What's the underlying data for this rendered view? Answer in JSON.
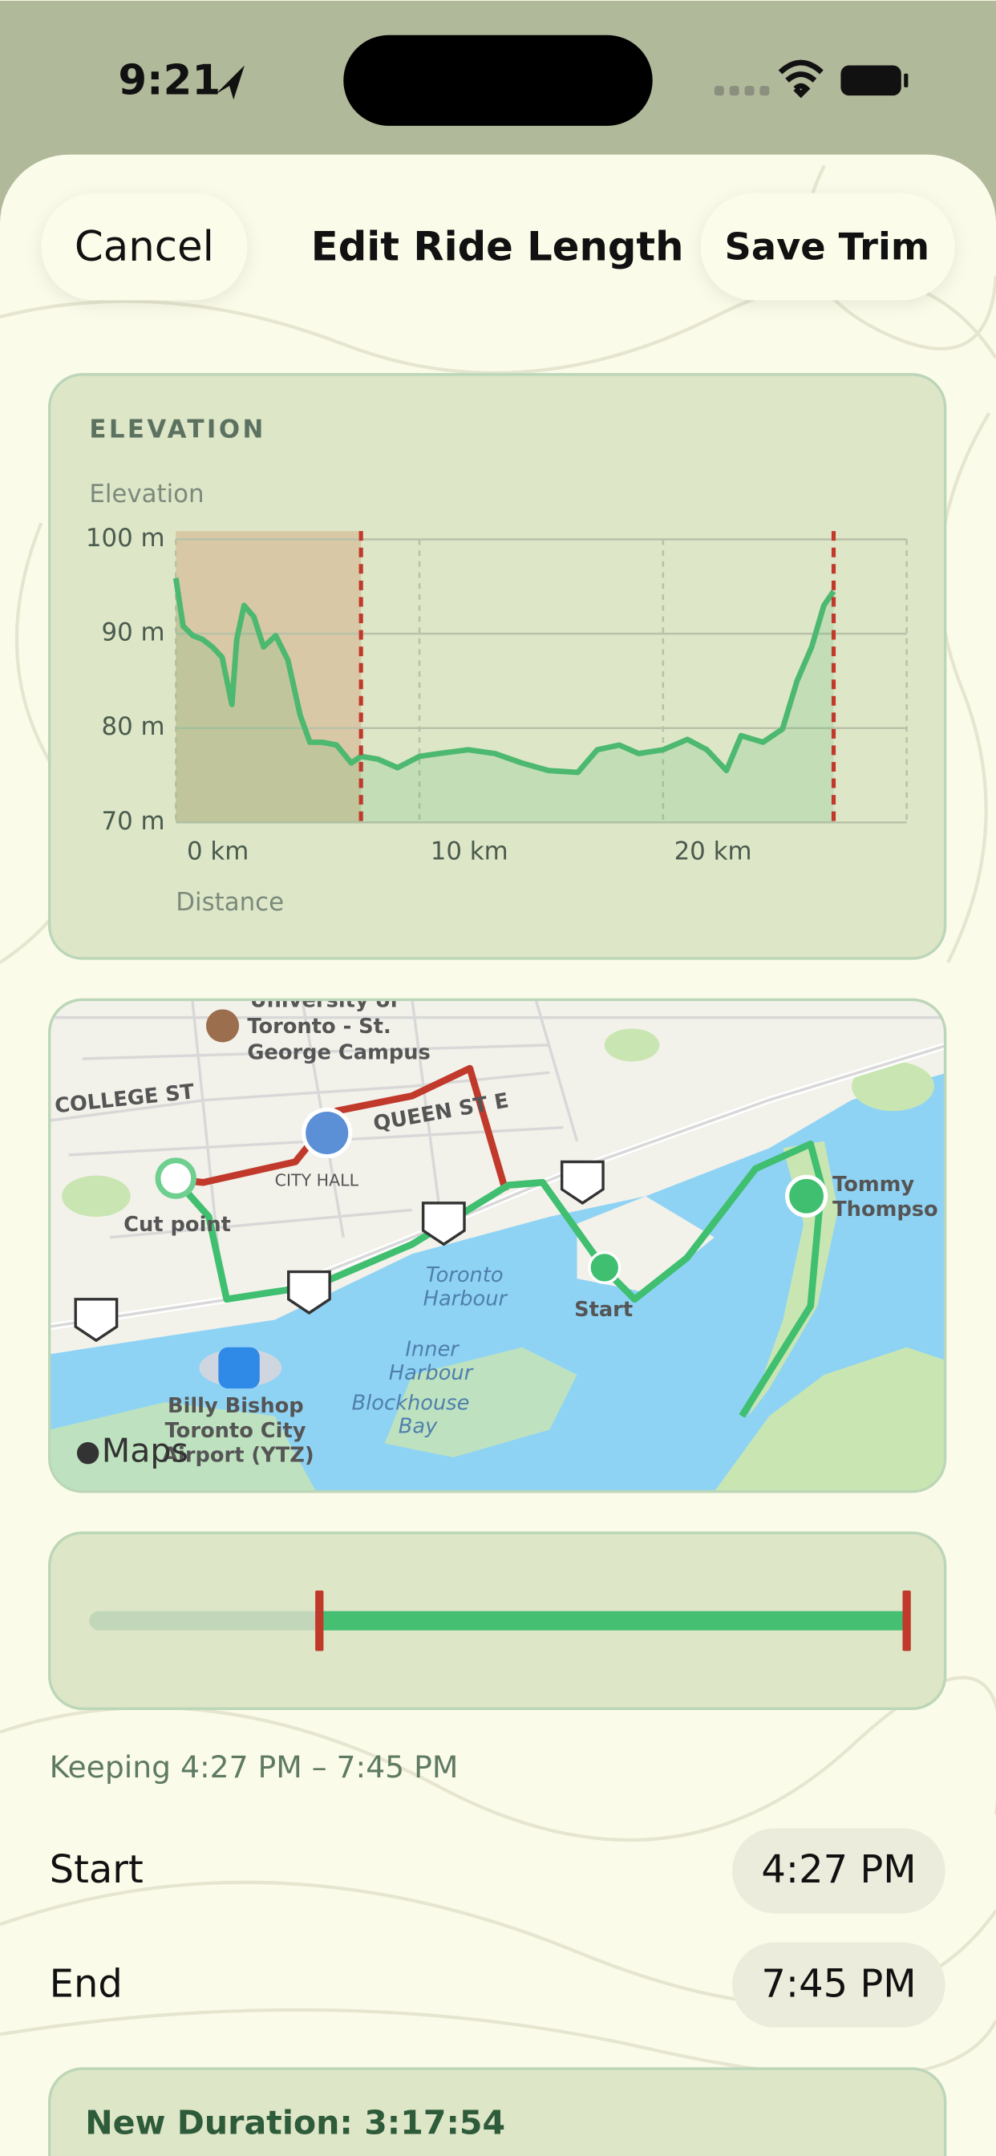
{
  "status_bar": {
    "time": "9:21"
  },
  "header": {
    "cancel": "Cancel",
    "title": "Edit Ride Length",
    "save": "Save Trim"
  },
  "chart_data": {
    "type": "line",
    "section_title": "ELEVATION",
    "y_label": "Elevation",
    "x_label": "Distance",
    "x": [
      0,
      0.3,
      0.7,
      1.1,
      1.5,
      1.9,
      2.3,
      2.5,
      2.8,
      3.2,
      3.6,
      4.1,
      4.6,
      5.1,
      5.5,
      6.0,
      6.6,
      7.2,
      7.6,
      8.3,
      9.1,
      10,
      10.8,
      12,
      13.1,
      14.2,
      15.3,
      16.5,
      17.3,
      18.2,
      19,
      20,
      21,
      21.8,
      22.6,
      23.2,
      24.1,
      24.9,
      25.5,
      26.1,
      26.6,
      27
    ],
    "series": [
      {
        "name": "Elevation",
        "color": "#4cb870",
        "values": [
          95.9,
          90.8,
          89.8,
          89.4,
          88.6,
          87.5,
          82.5,
          89.4,
          93,
          91.8,
          88.6,
          89.8,
          87.2,
          81.4,
          78.5,
          78.5,
          78.2,
          76.3,
          77,
          76.7,
          75.8,
          77,
          77.3,
          77.7,
          77.3,
          76.3,
          75.5,
          75.3,
          77.7,
          78.2,
          77.3,
          77.7,
          78.8,
          77.7,
          75.5,
          79.2,
          78.5,
          79.9,
          85,
          88.6,
          93,
          94.5
        ]
      }
    ],
    "xlim": [
      0,
      30
    ],
    "ylim": [
      70,
      100
    ],
    "xticks": [
      {
        "value": 0,
        "label": "0 km"
      },
      {
        "value": 10,
        "label": "10 km"
      },
      {
        "value": 20,
        "label": "20 km"
      }
    ],
    "yticks": [
      {
        "value": 70,
        "label": "70 m"
      },
      {
        "value": 80,
        "label": "80 m"
      },
      {
        "value": 90,
        "label": "90 m"
      },
      {
        "value": 100,
        "label": "100 m"
      }
    ],
    "trim_range": [
      7.6,
      27
    ],
    "trim_color": "#c0392b",
    "grid": true
  },
  "map": {
    "labels": [
      "University of",
      "Toronto - St.",
      "George Campus",
      "COLLEGE ST",
      "QUEEN ST E",
      "CITY HALL",
      "Cut point",
      "Start",
      "Toronto",
      "Harbour",
      "Inner",
      "Harbour",
      "Blockhouse",
      "Bay",
      "Billy Bishop",
      "Toronto City",
      "Airport (YTZ)",
      "Tommy",
      "Thompso",
      "Maps"
    ]
  },
  "summary": {
    "keeping": "Keeping 4:27 PM – 7:45 PM",
    "start_label": "Start",
    "start_time": "4:27 PM",
    "end_label": "End",
    "end_time": "7:45 PM",
    "duration": "New Duration: 3:17:54"
  }
}
